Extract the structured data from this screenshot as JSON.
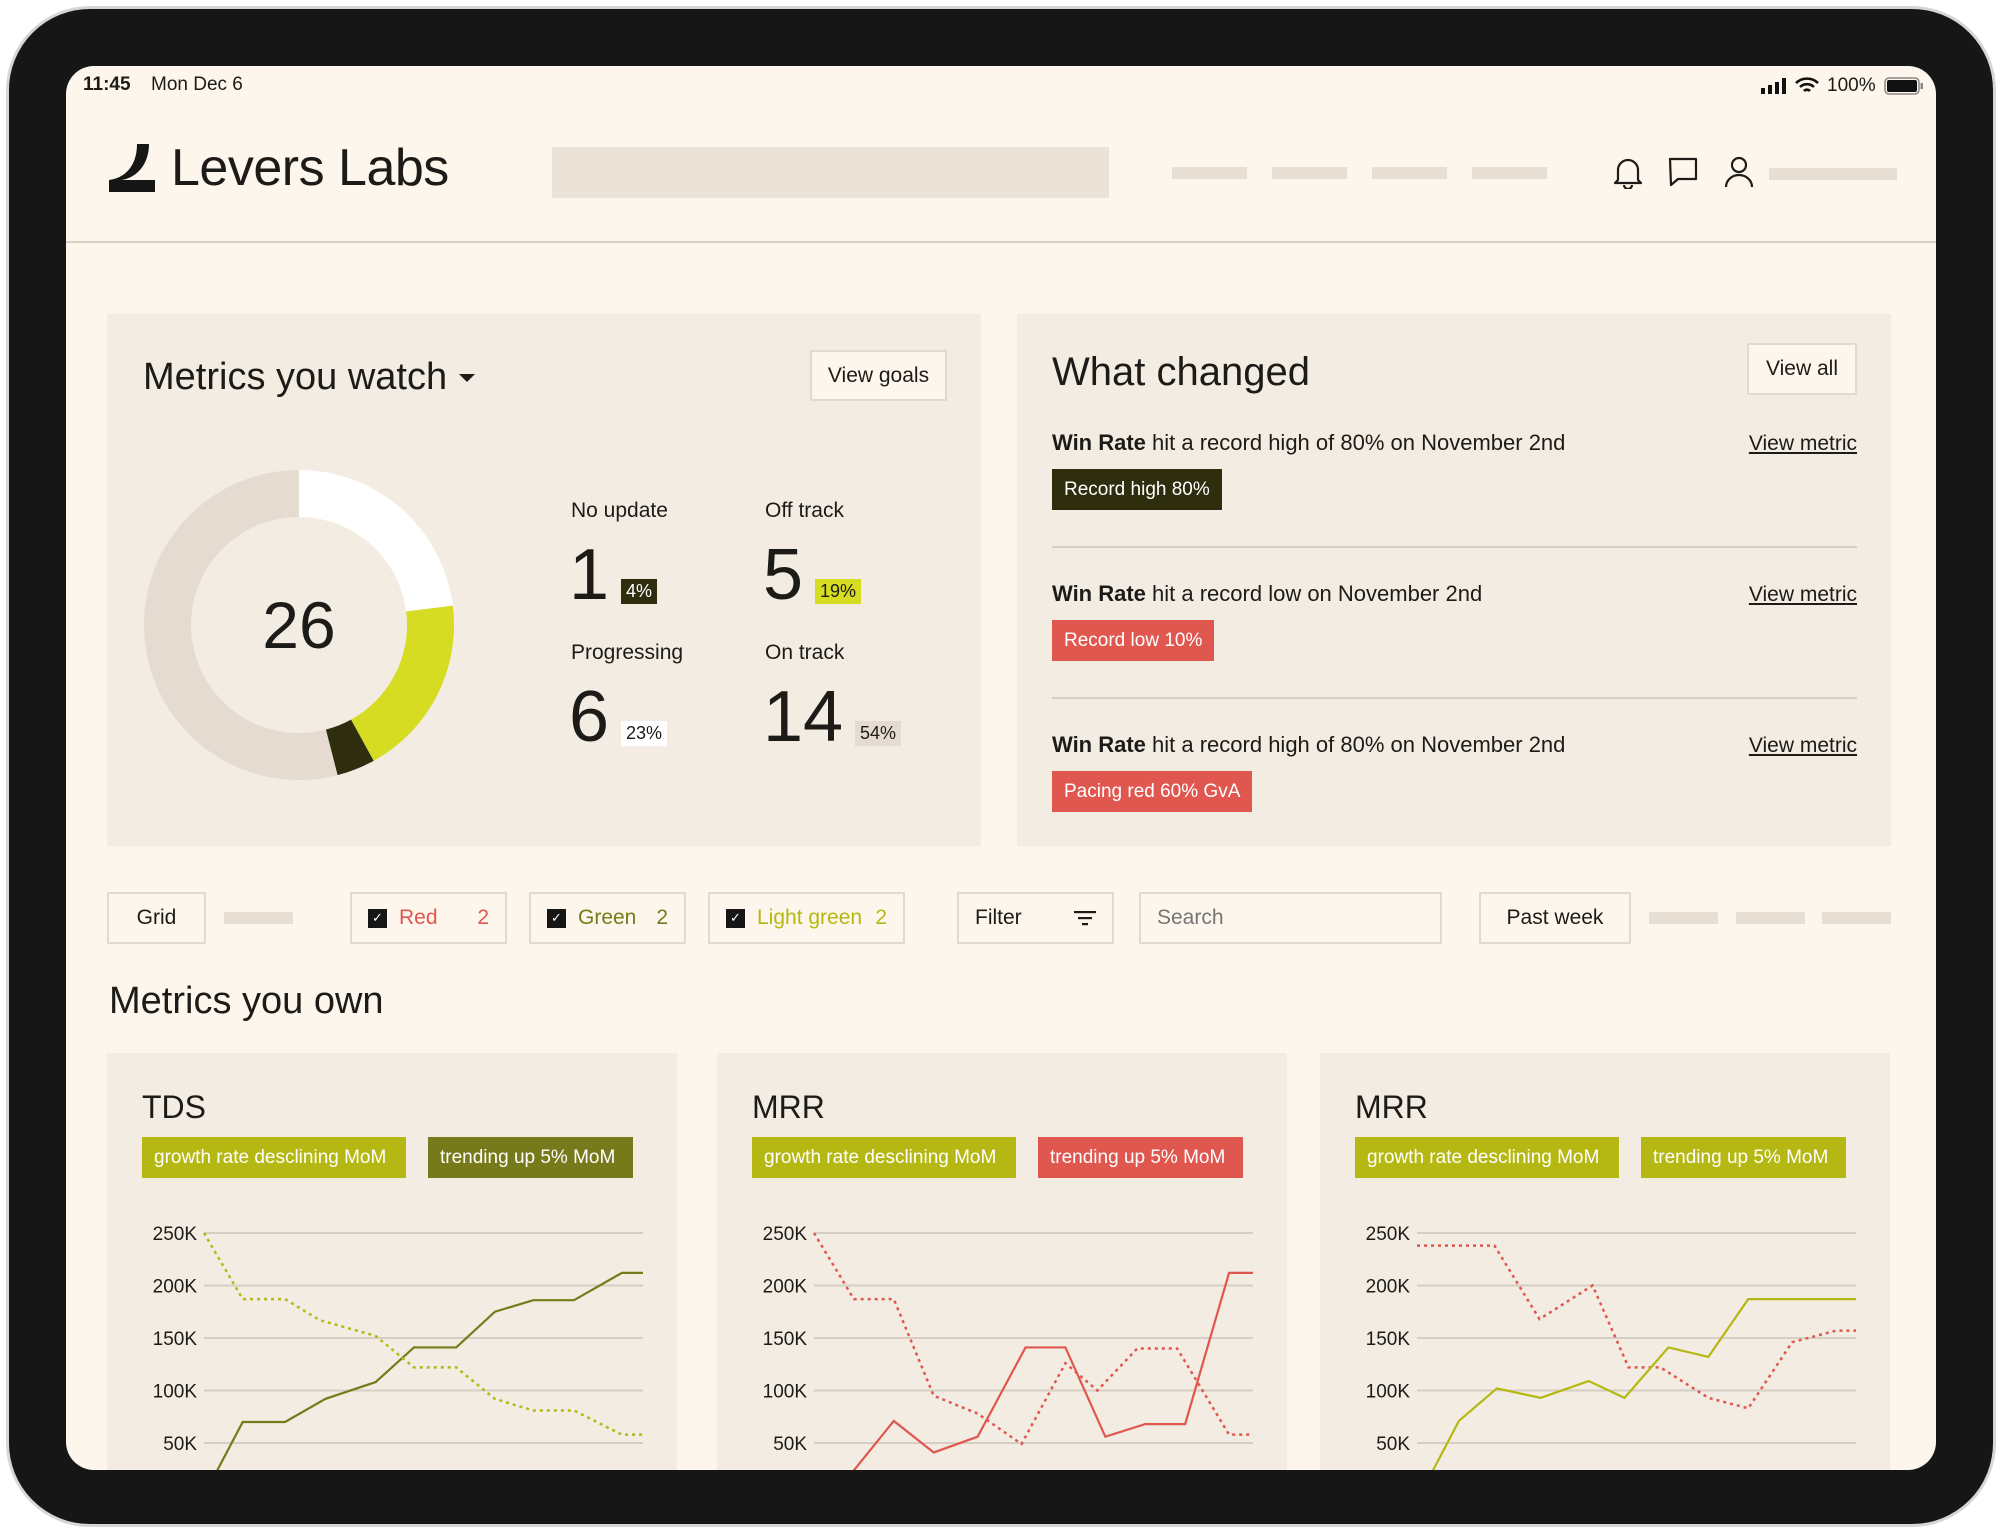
{
  "status_bar": {
    "time": "11:45",
    "date": "Mon Dec 6",
    "battery": "100%"
  },
  "header": {
    "brand": "Levers Labs",
    "icons": [
      "bell-icon",
      "chat-icon",
      "user-icon"
    ]
  },
  "watch": {
    "title": "Metrics you watch",
    "view_goals": "View goals",
    "total": "26",
    "stats": [
      {
        "label": "No update",
        "value": "1",
        "pct": "4%",
        "pct_value": 4,
        "color": "#2e2e0f",
        "text_color": "#ffffff"
      },
      {
        "label": "Off track",
        "value": "5",
        "pct": "19%",
        "pct_value": 19,
        "color": "#d6dc22",
        "text_color": "#1c1b17"
      },
      {
        "label": "Progressing",
        "value": "6",
        "pct": "23%",
        "pct_value": 23,
        "color": "#ffffff",
        "text_color": "#1c1b17"
      },
      {
        "label": "On track",
        "value": "14",
        "pct": "54%",
        "pct_value": 54,
        "color": "#e6dbd0",
        "text_color": "#1c1b17"
      }
    ]
  },
  "changed": {
    "title": "What changed",
    "view_all": "View all",
    "items": [
      {
        "metric": "Win Rate",
        "text": " hit a record high of 80% on November 2nd",
        "link": "View metric",
        "badge": "Record high 80%",
        "badge_color": "#2e2e0f"
      },
      {
        "metric": "Win Rate",
        "text": " hit a record low on November 2nd",
        "link": "View metric",
        "badge": "Record low 10%",
        "badge_color": "#e0574f"
      },
      {
        "metric": "Win Rate",
        "text": " hit a record high of 80% on November 2nd",
        "link": "View metric",
        "badge": "Pacing red 60% GvA",
        "badge_color": "#e0574f"
      }
    ]
  },
  "toolbar": {
    "grid": "Grid",
    "filters": [
      {
        "label": "Red",
        "count": "2",
        "color": "#e0574f",
        "checked": true
      },
      {
        "label": "Green",
        "count": "2",
        "color": "#777a1a",
        "checked": true
      },
      {
        "label": "Light green",
        "count": "2",
        "color": "#b5b812",
        "checked": true
      }
    ],
    "filter": "Filter",
    "search_placeholder": "Search",
    "range": "Past week"
  },
  "own_title": "Metrics you own",
  "chart_data": [
    {
      "type": "line",
      "title": "TDS",
      "tags": [
        {
          "text": "growth rate desclining MoM",
          "color": "#b5b812"
        },
        {
          "text": "trending up 5% MoM",
          "color": "#777a1a"
        }
      ],
      "yticks": [
        "250K",
        "200K",
        "150K",
        "100K",
        "50K"
      ],
      "ytick_values": [
        250,
        200,
        150,
        100,
        50
      ],
      "ylim": [
        0,
        250
      ],
      "grid": true,
      "series": [
        {
          "name": "solid",
          "color": "#777a1a",
          "dash": false,
          "points": [
            [
              0,
              0
            ],
            [
              0.97,
              70
            ],
            [
              2.03,
              70
            ],
            [
              3.04,
              92
            ],
            [
              4.3,
              108
            ],
            [
              5.26,
              141
            ],
            [
              6.32,
              141
            ],
            [
              7.29,
              175
            ],
            [
              8.25,
              186
            ],
            [
              9.27,
              186
            ],
            [
              10.47,
              212
            ],
            [
              11,
              212
            ]
          ]
        },
        {
          "name": "dotted",
          "color": "#b5b812",
          "dash": true,
          "points": [
            [
              0,
              250
            ],
            [
              0.97,
              187
            ],
            [
              2.03,
              187
            ],
            [
              2.9,
              167
            ],
            [
              4.3,
              152
            ],
            [
              5.26,
              122
            ],
            [
              6.32,
              122
            ],
            [
              7.29,
              92
            ],
            [
              8.25,
              81
            ],
            [
              9.27,
              81
            ],
            [
              10.47,
              58
            ],
            [
              11,
              58
            ]
          ]
        }
      ]
    },
    {
      "type": "line",
      "title": "MRR",
      "tags": [
        {
          "text": "growth rate desclining MoM",
          "color": "#b5b812"
        },
        {
          "text": "trending up 5% MoM",
          "color": "#e0574f"
        }
      ],
      "yticks": [
        "250K",
        "200K",
        "150K",
        "100K",
        "50K"
      ],
      "ytick_values": [
        250,
        200,
        150,
        100,
        50
      ],
      "ylim": [
        0,
        250
      ],
      "grid": true,
      "series": [
        {
          "name": "solid",
          "color": "#e0574f",
          "dash": false,
          "points": [
            [
              0,
              -20
            ],
            [
              1,
              24
            ],
            [
              2,
              71
            ],
            [
              3,
              41
            ],
            [
              4.1,
              56
            ],
            [
              5.3,
              141
            ],
            [
              6.3,
              141
            ],
            [
              7.3,
              56
            ],
            [
              8.3,
              68
            ],
            [
              9.3,
              68
            ],
            [
              10.4,
              212
            ],
            [
              11,
              212
            ]
          ]
        },
        {
          "name": "dotted",
          "color": "#e0574f",
          "dash": true,
          "points": [
            [
              0,
              250
            ],
            [
              1,
              187
            ],
            [
              2,
              187
            ],
            [
              3,
              95
            ],
            [
              4.1,
              78
            ],
            [
              5.2,
              49
            ],
            [
              6.3,
              126
            ],
            [
              7.1,
              100
            ],
            [
              8.1,
              140
            ],
            [
              9.1,
              140
            ],
            [
              10.4,
              58
            ],
            [
              11,
              58
            ]
          ]
        }
      ]
    },
    {
      "type": "line",
      "title": "MRR",
      "tags": [
        {
          "text": "growth rate desclining MoM",
          "color": "#b5b812"
        },
        {
          "text": "trending up 5% MoM",
          "color": "#b5b812"
        }
      ],
      "yticks": [
        "250K",
        "200K",
        "150K",
        "100K",
        "50K"
      ],
      "ytick_values": [
        250,
        200,
        150,
        100,
        50
      ],
      "ylim": [
        0,
        250
      ],
      "grid": true,
      "series": [
        {
          "name": "dotted",
          "color": "#e0574f",
          "dash": true,
          "points": [
            [
              0,
              238
            ],
            [
              1.94,
              238
            ],
            [
              3.07,
              168
            ],
            [
              4.4,
              200
            ],
            [
              5.3,
              122
            ],
            [
              6.1,
              122
            ],
            [
              7.3,
              93
            ],
            [
              8.3,
              83
            ],
            [
              9.4,
              146
            ],
            [
              10.5,
              157
            ],
            [
              11,
              157
            ]
          ]
        },
        {
          "name": "solid",
          "color": "#b5b812",
          "dash": false,
          "points": [
            [
              0,
              -10
            ],
            [
              0.4,
              24
            ],
            [
              1.05,
              71
            ],
            [
              2,
              102
            ],
            [
              3.1,
              93
            ],
            [
              4.3,
              109
            ],
            [
              5.2,
              93
            ],
            [
              6.3,
              141
            ],
            [
              7.3,
              132
            ],
            [
              8.3,
              187
            ],
            [
              11,
              187
            ]
          ]
        }
      ]
    }
  ]
}
